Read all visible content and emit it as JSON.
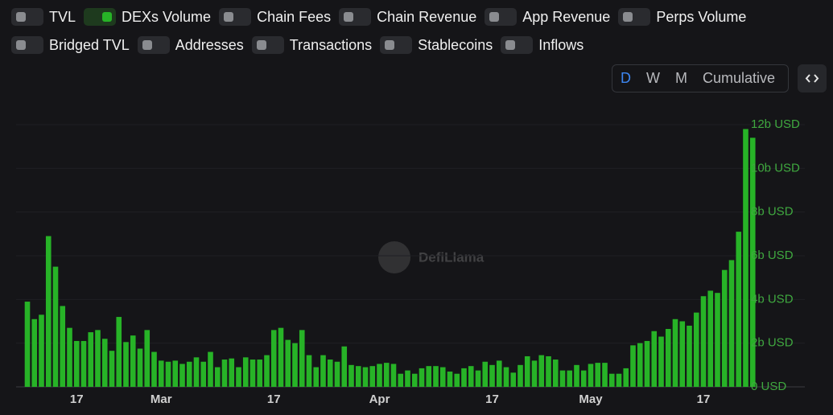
{
  "toggles": [
    {
      "label": "TVL",
      "on": false
    },
    {
      "label": "DEXs Volume",
      "on": true
    },
    {
      "label": "Chain Fees",
      "on": false
    },
    {
      "label": "Chain Revenue",
      "on": false
    },
    {
      "label": "App Revenue",
      "on": false
    },
    {
      "label": "Perps Volume",
      "on": false
    },
    {
      "label": "Bridged TVL",
      "on": false
    },
    {
      "label": "Addresses",
      "on": false
    },
    {
      "label": "Transactions",
      "on": false
    },
    {
      "label": "Stablecoins",
      "on": false
    },
    {
      "label": "Inflows",
      "on": false
    }
  ],
  "timeframes": [
    "D",
    "W",
    "M",
    "Cumulative"
  ],
  "watermark": "DefiLlama",
  "chart_data": {
    "type": "bar",
    "color": "#27b327",
    "grid": true,
    "categories": [
      null,
      null,
      null,
      null,
      null,
      null,
      null,
      "17",
      null,
      null,
      null,
      null,
      null,
      null,
      null,
      null,
      null,
      null,
      null,
      "Mar",
      null,
      null,
      null,
      null,
      null,
      null,
      null,
      null,
      null,
      null,
      null,
      null,
      null,
      null,
      null,
      "17",
      null,
      null,
      null,
      null,
      null,
      null,
      null,
      null,
      null,
      null,
      null,
      null,
      null,
      null,
      "Apr",
      null,
      null,
      null,
      null,
      null,
      null,
      null,
      null,
      null,
      null,
      null,
      null,
      null,
      null,
      null,
      "17",
      null,
      null,
      null,
      null,
      null,
      null,
      null,
      null,
      null,
      null,
      null,
      null,
      null,
      "May",
      null,
      null,
      null,
      null,
      null,
      null,
      null,
      null,
      null,
      null,
      null,
      null,
      null,
      null,
      null,
      "17",
      null,
      null,
      null,
      null,
      null,
      null,
      null
    ],
    "values": [
      3.9,
      3.1,
      3.3,
      6.9,
      5.5,
      3.7,
      2.7,
      2.1,
      2.1,
      2.5,
      2.6,
      2.2,
      1.65,
      3.2,
      2.05,
      2.35,
      1.75,
      2.6,
      1.6,
      1.2,
      1.15,
      1.2,
      1.05,
      1.15,
      1.35,
      1.15,
      1.6,
      0.9,
      1.25,
      1.3,
      0.9,
      1.35,
      1.25,
      1.25,
      1.45,
      2.6,
      2.7,
      2.15,
      2.0,
      2.6,
      1.45,
      0.9,
      1.45,
      1.25,
      1.15,
      1.85,
      1.0,
      0.95,
      0.9,
      0.95,
      1.05,
      1.1,
      1.05,
      0.6,
      0.75,
      0.6,
      0.85,
      0.95,
      0.95,
      0.9,
      0.7,
      0.6,
      0.85,
      0.95,
      0.75,
      1.15,
      1.0,
      1.2,
      0.9,
      0.65,
      1.0,
      1.4,
      1.2,
      1.45,
      1.4,
      1.25,
      0.75,
      0.75,
      1.0,
      0.75,
      1.05,
      1.1,
      1.1,
      0.6,
      0.6,
      0.85,
      1.9,
      2.0,
      2.1,
      2.55,
      2.3,
      2.65,
      3.1,
      3.0,
      2.8,
      3.4,
      4.15,
      4.4,
      4.3,
      5.35,
      5.8,
      7.1,
      11.8,
      11.4
    ],
    "ylim": [
      0,
      12
    ],
    "yticks": [
      {
        "value": 0,
        "label": "0 USD"
      },
      {
        "value": 2,
        "label": "2b USD"
      },
      {
        "value": 4,
        "label": "4b USD"
      },
      {
        "value": 6,
        "label": "6b USD"
      },
      {
        "value": 8,
        "label": "8b USD"
      },
      {
        "value": 10,
        "label": "10b USD"
      },
      {
        "value": 12,
        "label": "12b USD"
      }
    ]
  }
}
